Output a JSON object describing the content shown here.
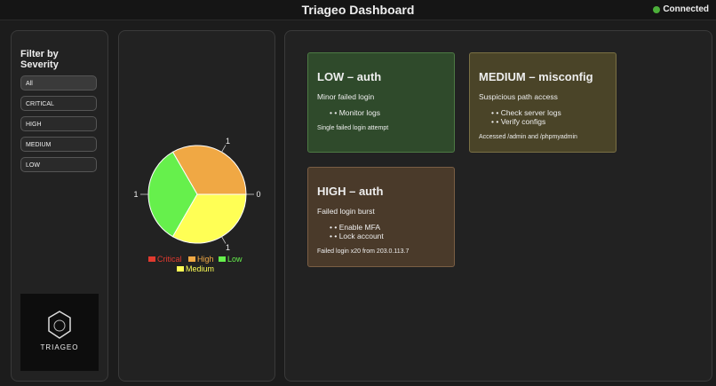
{
  "header": {
    "title": "Triageo Dashboard",
    "status": "Connected"
  },
  "filters": {
    "title": "Filter by Severity",
    "options": [
      "All",
      "CRITICAL",
      "HIGH",
      "MEDIUM",
      "LOW"
    ]
  },
  "logo": {
    "text": "TRIAGEO"
  },
  "chart_data": {
    "type": "pie",
    "categories": [
      "Critical",
      "High",
      "Low",
      "Medium"
    ],
    "values": [
      0,
      1,
      1,
      1
    ],
    "colors": [
      "#e03a2f",
      "#f0a844",
      "#66f04c",
      "#ffff55"
    ],
    "legend": "bottom"
  },
  "alerts": [
    {
      "title": "LOW – auth",
      "summary": "Minor failed login",
      "actions": [
        "Monitor logs"
      ],
      "detail": "Single failed login attempt",
      "bg": "#2f4a2b",
      "border": "#4d7a44"
    },
    {
      "title": "MEDIUM – misconfig",
      "summary": "Suspicious path access",
      "actions": [
        "Check server logs",
        "Verify configs"
      ],
      "detail": "Accessed /admin and /phpmyadmin",
      "bg": "#4a4428",
      "border": "#7a7044"
    },
    {
      "title": "HIGH – auth",
      "summary": "Failed login burst",
      "actions": [
        "Enable MFA",
        "Lock account"
      ],
      "detail": "Failed login x20 from 203.0.113.7",
      "bg": "#4a3a2a",
      "border": "#7a5e44"
    }
  ]
}
